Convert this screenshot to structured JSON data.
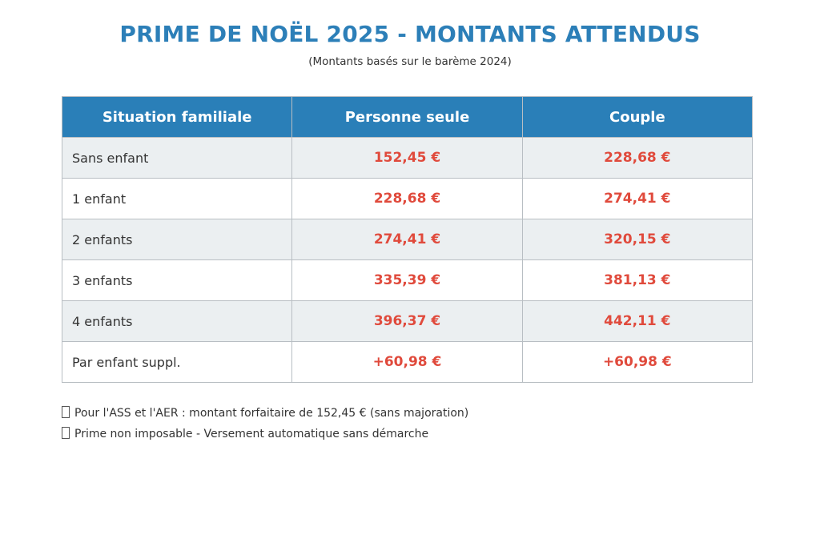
{
  "title": "PRIME DE NOËL 2025 - MONTANTS ATTENDUS",
  "subtitle": "(Montants basés sur le barème 2024)",
  "table": {
    "headers": [
      "Situation familiale",
      "Personne seule",
      "Couple"
    ],
    "rows": [
      {
        "situation": "Sans enfant",
        "seule": "152,45 €",
        "couple": "228,68 €"
      },
      {
        "situation": "1 enfant",
        "seule": "228,68 €",
        "couple": "274,41 €"
      },
      {
        "situation": "2 enfants",
        "seule": "274,41 €",
        "couple": "320,15 €"
      },
      {
        "situation": "3 enfants",
        "seule": "335,39 €",
        "couple": "381,13 €"
      },
      {
        "situation": "4 enfants",
        "seule": "396,37 €",
        "couple": "442,11 €"
      },
      {
        "situation": "Par enfant suppl.",
        "seule": "+60,98 €",
        "couple": "+60,98 €"
      }
    ]
  },
  "notes": [
    {
      "icon": "missing-glyph-box",
      "text": "Pour l'ASS et l'AER : montant forfaitaire de 152,45 € (sans majoration)"
    },
    {
      "icon": "missing-glyph-box",
      "text": "Prime non imposable - Versement automatique sans démarche"
    }
  ],
  "colors": {
    "title": "#2c7fb8",
    "header_bg": "#2a7fb8",
    "amount": "#e04a3c",
    "alt_row": "#ebeff1"
  }
}
